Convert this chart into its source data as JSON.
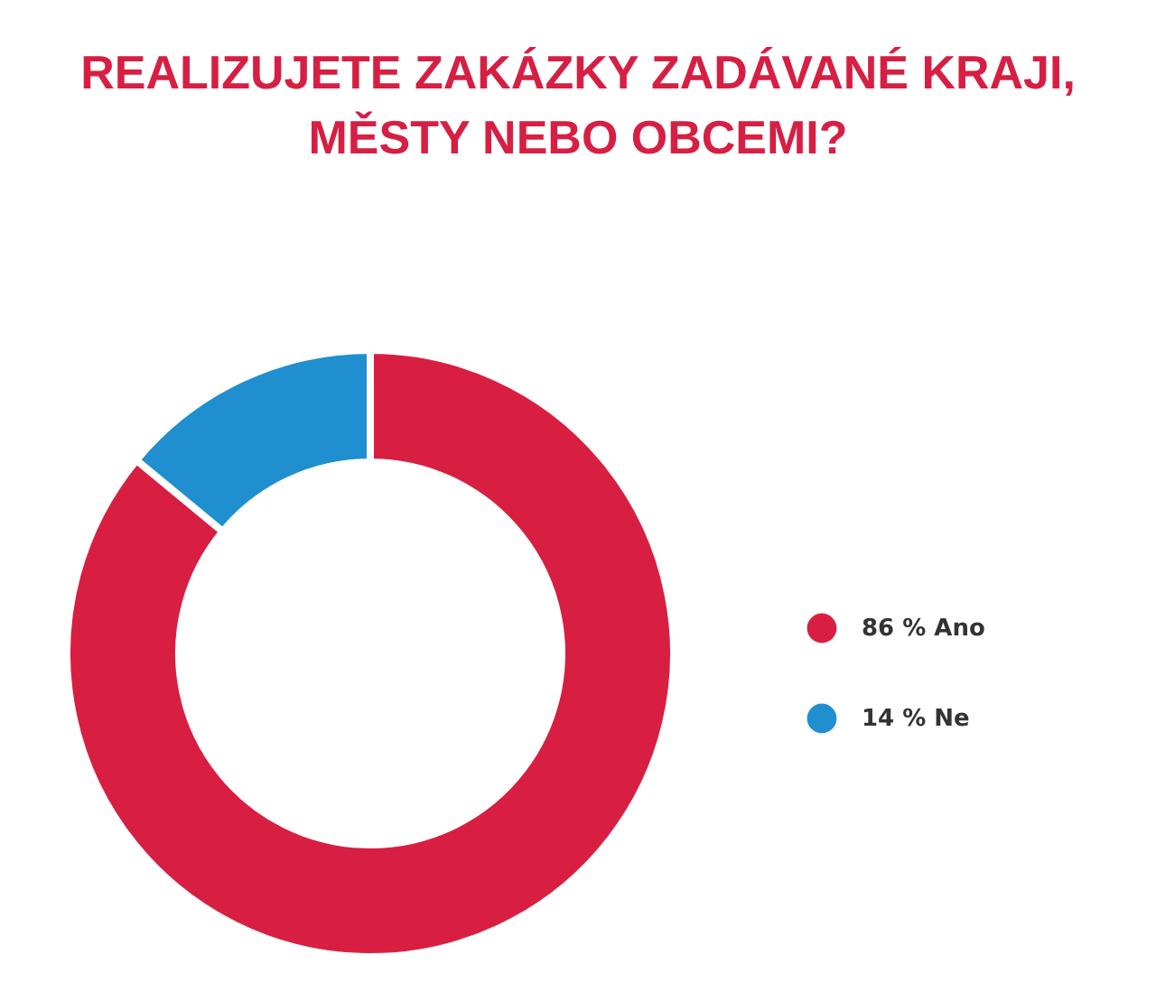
{
  "chart_data": {
    "type": "donut",
    "title": "REALIZUJETE ZAKÁZKY ZADÁVANÉ KRAJI,\nMĚSTY NEBO OBCEMI?",
    "categories": [
      "86 % Ano",
      "14 % Ne"
    ],
    "values": [
      86,
      14
    ],
    "colors": [
      "#d81f41",
      "#1f8fd0"
    ],
    "legend": "right"
  }
}
